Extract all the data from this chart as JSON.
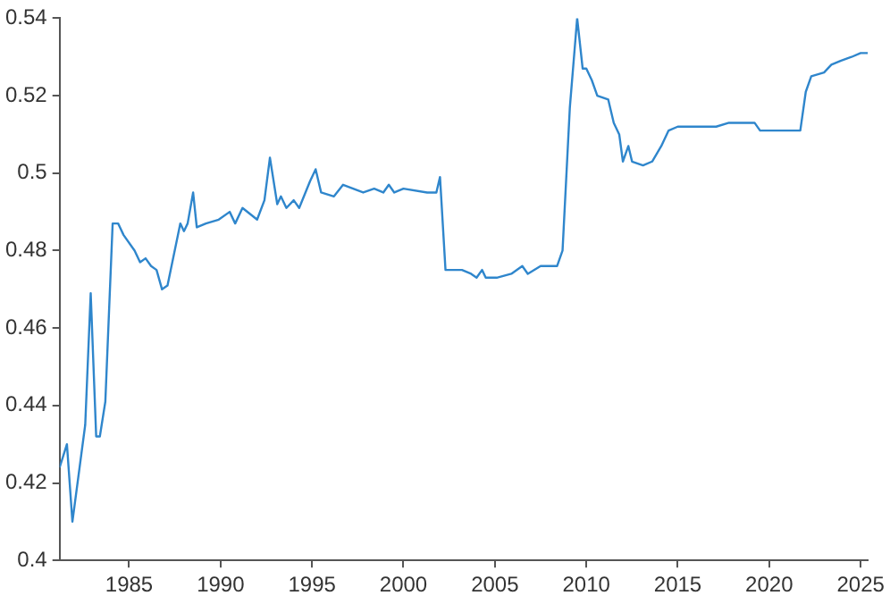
{
  "chart_data": {
    "type": "line",
    "x": [
      1981.2,
      1981.6,
      1981.9,
      1982.6,
      1982.9,
      1983.2,
      1983.4,
      1983.7,
      1984.1,
      1984.4,
      1984.7,
      1985.3,
      1985.6,
      1985.9,
      1986.2,
      1986.5,
      1986.8,
      1987.1,
      1987.8,
      1988.0,
      1988.2,
      1988.5,
      1988.7,
      1989.2,
      1989.9,
      1990.5,
      1990.8,
      1991.2,
      1992.0,
      1992.4,
      1992.7,
      1993.1,
      1993.3,
      1993.6,
      1994.0,
      1994.3,
      1994.9,
      1995.2,
      1995.5,
      1996.2,
      1996.7,
      1997.8,
      1998.4,
      1998.9,
      1999.2,
      1999.5,
      2000.0,
      2001.3,
      2001.8,
      2002.0,
      2002.3,
      2002.6,
      2003.2,
      2003.7,
      2004.0,
      2004.3,
      2004.5,
      2005.1,
      2005.9,
      2006.5,
      2006.8,
      2007.5,
      2008.4,
      2008.7,
      2009.1,
      2009.5,
      2009.8,
      2010.0,
      2010.3,
      2010.6,
      2011.2,
      2011.5,
      2011.8,
      2012.0,
      2012.3,
      2012.5,
      2013.1,
      2013.6,
      2014.1,
      2014.5,
      2015.0,
      2016.0,
      2017.1,
      2017.8,
      2019.2,
      2019.5,
      2021.7,
      2022.0,
      2022.3,
      2023.0,
      2023.4,
      2023.9,
      2024.5,
      2025.0,
      2025.4
    ],
    "series": [
      {
        "color": "#2f86cc",
        "values": [
          0.424,
          0.43,
          0.41,
          0.435,
          0.469,
          0.432,
          0.432,
          0.441,
          0.487,
          0.487,
          0.484,
          0.48,
          0.477,
          0.478,
          0.476,
          0.475,
          0.47,
          0.471,
          0.487,
          0.485,
          0.487,
          0.495,
          0.486,
          0.487,
          0.488,
          0.49,
          0.487,
          0.491,
          0.488,
          0.493,
          0.504,
          0.492,
          0.494,
          0.491,
          0.493,
          0.491,
          0.498,
          0.501,
          0.495,
          0.494,
          0.497,
          0.495,
          0.496,
          0.495,
          0.497,
          0.495,
          0.496,
          0.495,
          0.495,
          0.499,
          0.475,
          0.475,
          0.475,
          0.474,
          0.473,
          0.475,
          0.473,
          0.473,
          0.474,
          0.476,
          0.474,
          0.476,
          0.476,
          0.48,
          0.517,
          0.54,
          0.527,
          0.527,
          0.524,
          0.52,
          0.519,
          0.513,
          0.51,
          0.503,
          0.507,
          0.503,
          0.502,
          0.503,
          0.507,
          0.511,
          0.512,
          0.512,
          0.512,
          0.513,
          0.513,
          0.511,
          0.511,
          0.521,
          0.525,
          0.526,
          0.528,
          0.529,
          0.53,
          0.531,
          0.531
        ]
      }
    ],
    "xlim": [
      1981.2,
      2025.4
    ],
    "xticks": [
      1985,
      1990,
      1995,
      2000,
      2005,
      2010,
      2015,
      2020,
      2025
    ],
    "ylim": [
      0.4,
      0.54
    ],
    "yticks": [
      0.4,
      0.42,
      0.44,
      0.46,
      0.48,
      0.5,
      0.52,
      0.54
    ],
    "grid": false,
    "legend": false,
    "marker": "none",
    "line_style": "solid"
  }
}
